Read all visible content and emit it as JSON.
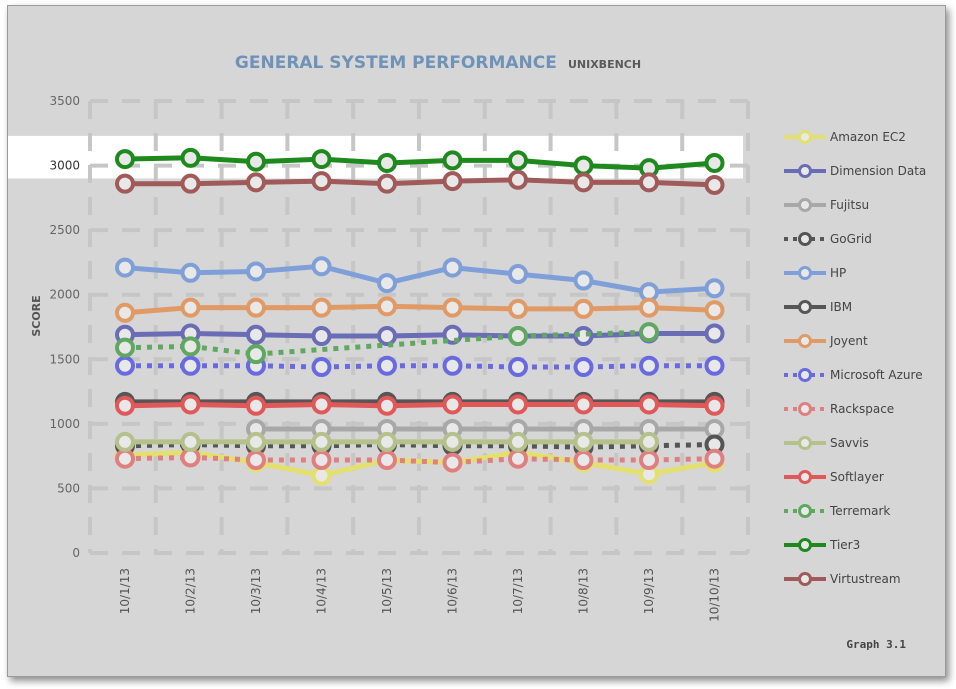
{
  "chart_data": {
    "type": "line",
    "title": "GENERAL SYSTEM PERFORMANCE",
    "subtitle": "UNIXBENCH",
    "ylabel": "SCORE",
    "xlabel": "",
    "ylim": [
      0,
      3500
    ],
    "yticks": [
      0,
      500,
      1000,
      1500,
      2000,
      2500,
      3000,
      3500
    ],
    "highlight_band": [
      2900,
      3230
    ],
    "grid": true,
    "legend_position": "right",
    "caption": "Graph 3.1",
    "categories": [
      "10/1/13",
      "10/2/13",
      "10/3/13",
      "10/4/13",
      "10/5/13",
      "10/6/13",
      "10/7/13",
      "10/8/13",
      "10/9/13",
      "10/10/13"
    ],
    "series": [
      {
        "name": "Amazon EC2",
        "color": "#e3e06e",
        "style": "solid",
        "values": [
          760,
          780,
          700,
          600,
          720,
          700,
          780,
          700,
          610,
          700
        ]
      },
      {
        "name": "Dimension Data",
        "color": "#6a6cb6",
        "style": "solid",
        "values": [
          1690,
          1700,
          1690,
          1680,
          1680,
          1690,
          1680,
          1680,
          1700,
          1700
        ]
      },
      {
        "name": "Fujitsu",
        "color": "#a8a8a8",
        "style": "solid",
        "values": [
          null,
          null,
          960,
          960,
          960,
          960,
          960,
          960,
          960,
          960
        ]
      },
      {
        "name": "GoGrid",
        "color": "#555555",
        "style": "dotted",
        "values": [
          830,
          840,
          830,
          830,
          840,
          830,
          830,
          820,
          830,
          840
        ]
      },
      {
        "name": "HP",
        "color": "#7f9fd8",
        "style": "solid",
        "values": [
          2210,
          2170,
          2180,
          2220,
          2090,
          2210,
          2160,
          2110,
          2020,
          2050
        ]
      },
      {
        "name": "IBM",
        "color": "#565656",
        "style": "solid",
        "values": [
          1170,
          1170,
          1170,
          1170,
          1170,
          1170,
          1170,
          1170,
          1170,
          1170
        ]
      },
      {
        "name": "Joyent",
        "color": "#e09a66",
        "style": "solid",
        "values": [
          1860,
          1900,
          1900,
          1900,
          1910,
          1900,
          1890,
          1890,
          1900,
          1880
        ]
      },
      {
        "name": "Microsoft Azure",
        "color": "#6a6ae0",
        "style": "dotted",
        "values": [
          1450,
          1450,
          1450,
          1440,
          1450,
          1450,
          1440,
          1440,
          1450,
          1450
        ]
      },
      {
        "name": "Rackspace",
        "color": "#e07f7f",
        "style": "dotted",
        "values": [
          730,
          740,
          720,
          720,
          720,
          700,
          730,
          720,
          720,
          730
        ]
      },
      {
        "name": "Savvis",
        "color": "#b6c08a",
        "style": "solid",
        "values": [
          860,
          860,
          860,
          860,
          860,
          860,
          860,
          860,
          860,
          null
        ]
      },
      {
        "name": "Softlayer",
        "color": "#e05858",
        "style": "solid",
        "values": [
          1140,
          1150,
          1140,
          1150,
          1140,
          1150,
          1150,
          1150,
          1150,
          1140
        ]
      },
      {
        "name": "Terremark",
        "color": "#5fa85f",
        "style": "dotted",
        "values": [
          1590,
          1600,
          1540,
          null,
          null,
          null,
          1680,
          null,
          1710,
          null
        ]
      },
      {
        "name": "Tier3",
        "color": "#1e8a1e",
        "style": "solid",
        "values": [
          3050,
          3060,
          3030,
          3050,
          3020,
          3040,
          3040,
          3000,
          2980,
          3020
        ]
      },
      {
        "name": "Virtustream",
        "color": "#a15a5a",
        "style": "solid",
        "values": [
          2860,
          2860,
          2870,
          2880,
          2860,
          2880,
          2890,
          2870,
          2870,
          2850
        ]
      }
    ]
  }
}
